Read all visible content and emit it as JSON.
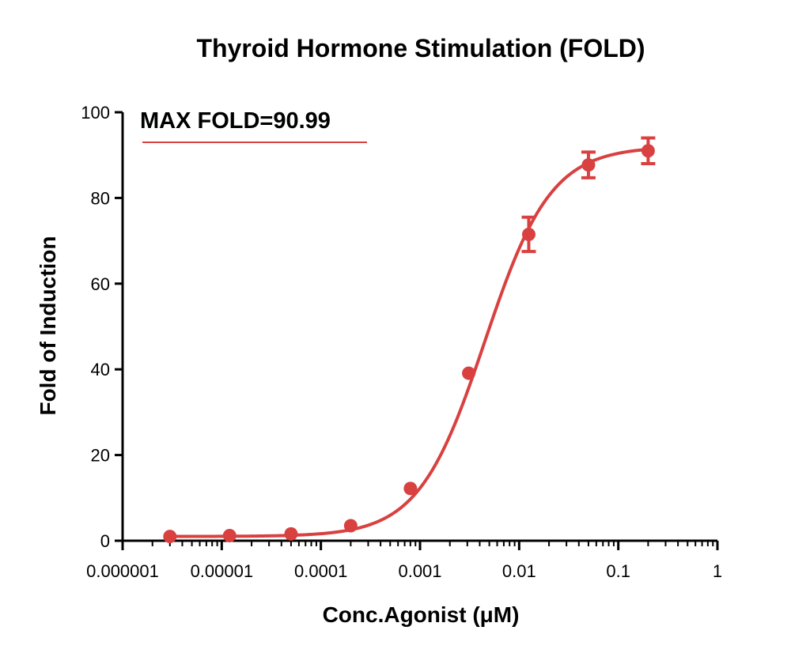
{
  "chart_data": {
    "type": "scatter",
    "title": "Thyroid Hormone Stimulation (FOLD)",
    "xlabel": "Conc.Agonist (μM)",
    "ylabel": "Fold of Induction",
    "x_scale": "log",
    "xlim": [
      1e-06,
      1
    ],
    "ylim": [
      0,
      100
    ],
    "x_ticks": [
      1e-06,
      1e-05,
      0.0001,
      0.001,
      0.01,
      0.1,
      1
    ],
    "x_tick_labels": [
      "0.000001",
      "0.00001",
      "0.0001",
      "0.001",
      "0.01",
      "0.1",
      "1"
    ],
    "y_ticks": [
      0,
      20,
      40,
      60,
      80,
      100
    ],
    "y_tick_labels": [
      "0",
      "20",
      "40",
      "60",
      "80",
      "100"
    ],
    "annotation": "MAX FOLD=90.99",
    "color": "#d94040",
    "points": [
      {
        "x": 3e-06,
        "y": 1.0,
        "err": 0
      },
      {
        "x": 1.2e-05,
        "y": 1.2,
        "err": 0
      },
      {
        "x": 5e-05,
        "y": 1.6,
        "err": 0
      },
      {
        "x": 0.0002,
        "y": 3.5,
        "err": 0
      },
      {
        "x": 0.0008,
        "y": 12.2,
        "err": 0
      },
      {
        "x": 0.0031,
        "y": 39.1,
        "err": 0
      },
      {
        "x": 0.0125,
        "y": 71.5,
        "err": 4.0
      },
      {
        "x": 0.05,
        "y": 87.7,
        "err": 3.0
      },
      {
        "x": 0.2,
        "y": 91.0,
        "err": 3.0
      }
    ],
    "fit": {
      "model": "four-parameter logistic",
      "bottom": 1.0,
      "top": 92.0,
      "ec50": 0.0045,
      "hill": 1.3
    }
  }
}
